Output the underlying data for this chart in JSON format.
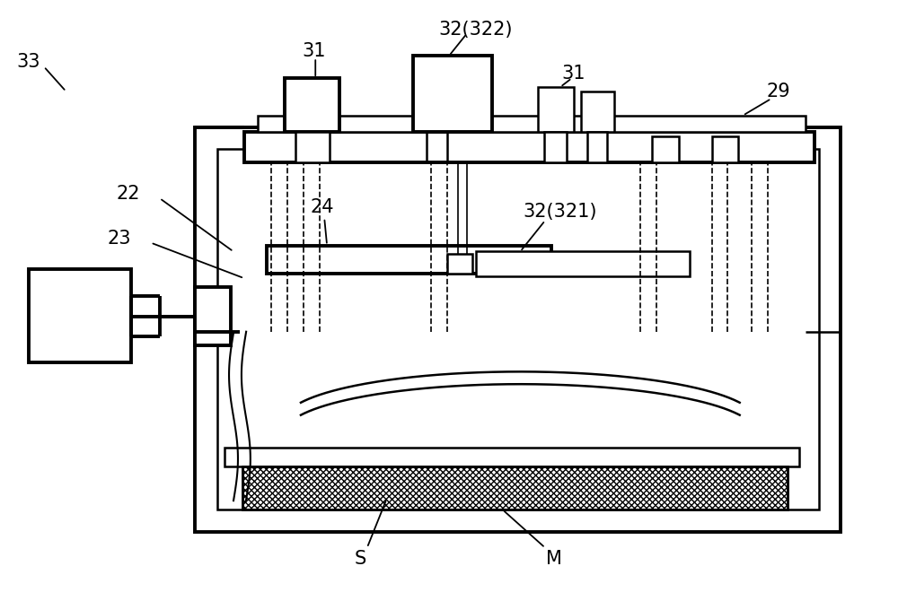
{
  "bg_color": "#ffffff",
  "lc": "#000000",
  "lw_thick": 2.8,
  "lw_med": 1.8,
  "lw_thin": 1.2,
  "fs": 15,
  "fig_w": 10.0,
  "fig_h": 6.7
}
